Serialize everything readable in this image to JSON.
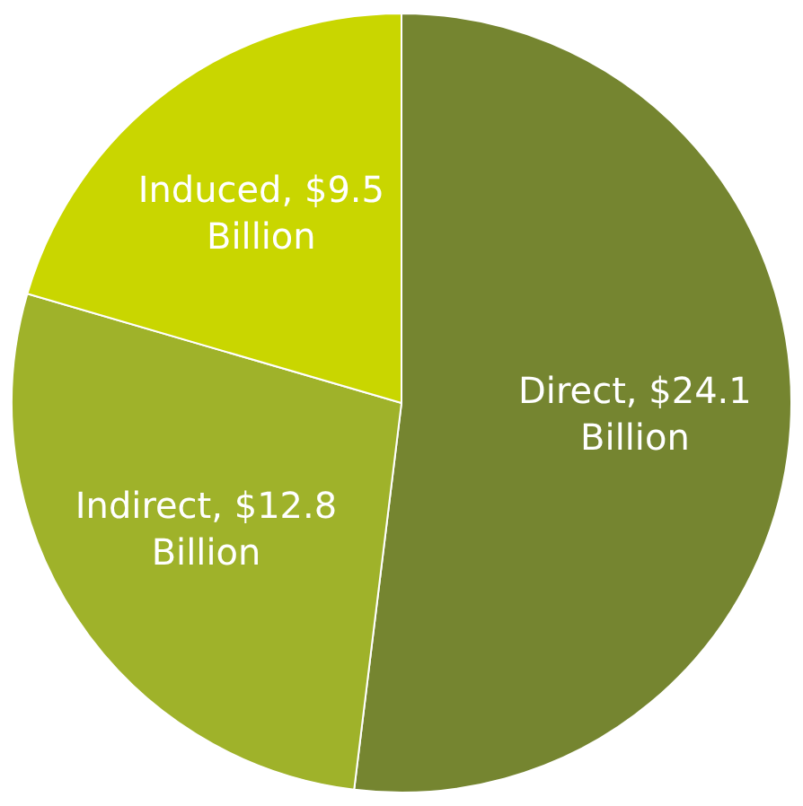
{
  "chart_data": {
    "type": "pie",
    "categories": [
      "Direct",
      "Indirect",
      "Induced"
    ],
    "values": [
      24.1,
      12.8,
      9.5
    ],
    "value_labels": [
      "$24.1 Billion",
      "$12.8 Billion",
      "$9.5 Billion"
    ],
    "colors": [
      "#758530",
      "#9fb22a",
      "#c9d600"
    ],
    "legend": false
  }
}
